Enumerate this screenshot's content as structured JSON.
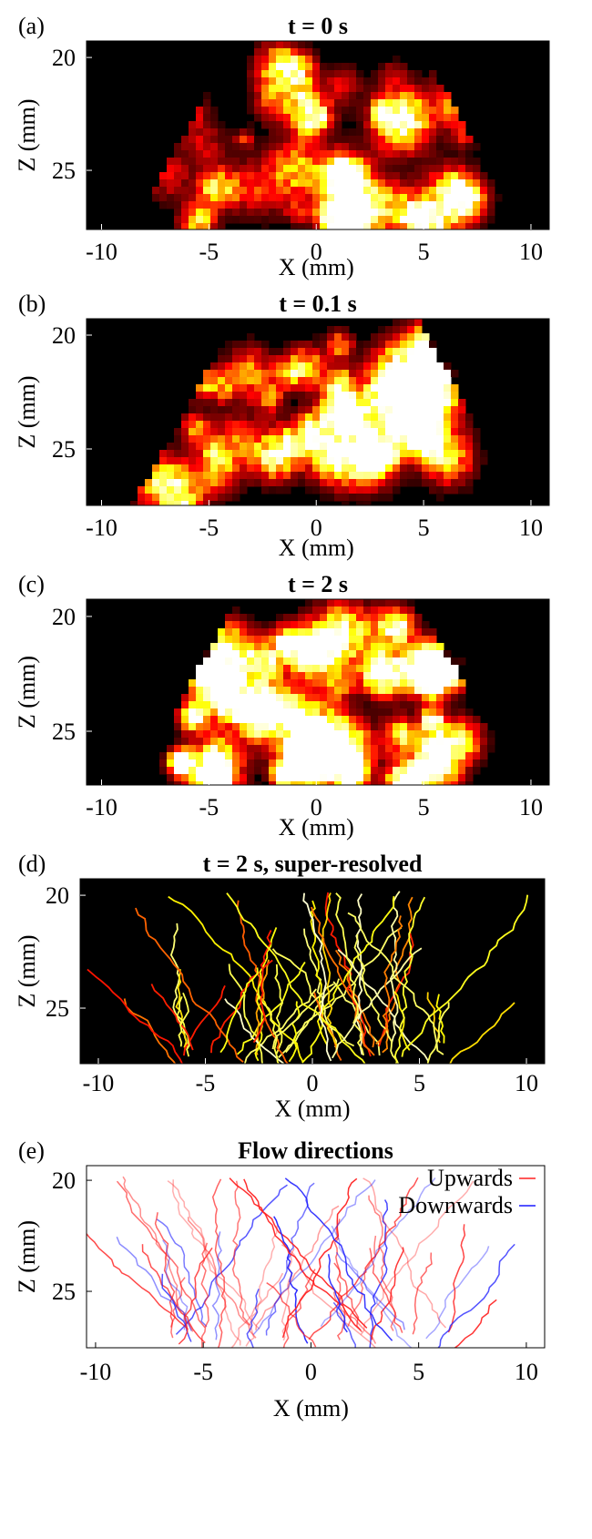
{
  "chart_data": [
    {
      "type": "heatmap",
      "panel_label": "(a)",
      "title": "t = 0 s",
      "xlabel": "X (mm)",
      "ylabel": "Z (mm)",
      "xlim": [
        -10.7,
        10.85
      ],
      "ylim": [
        19.27,
        27.62
      ],
      "y_reversed": true,
      "xticks": [
        -10,
        -5,
        0,
        5,
        10
      ],
      "yticks": [
        20,
        25
      ],
      "colormap": "hot"
    },
    {
      "type": "heatmap",
      "panel_label": "(b)",
      "title": "t = 0.1 s",
      "xlabel": "X (mm)",
      "ylabel": "Z (mm)",
      "xlim": [
        -10.7,
        10.85
      ],
      "ylim": [
        19.28,
        27.48
      ],
      "y_reversed": true,
      "xticks": [
        -10,
        -5,
        0,
        5,
        10
      ],
      "yticks": [
        20,
        25
      ],
      "colormap": "hot"
    },
    {
      "type": "heatmap",
      "panel_label": "(c)",
      "title": "t = 2 s",
      "xlabel": "X (mm)",
      "ylabel": "Z (mm)",
      "xlim": [
        -10.7,
        10.85
      ],
      "ylim": [
        19.25,
        27.34
      ],
      "y_reversed": true,
      "xticks": [
        -10,
        -5,
        0,
        5,
        10
      ],
      "yticks": [
        20,
        25
      ],
      "colormap": "hot"
    },
    {
      "type": "vessels",
      "panel_label": "(d)",
      "title": "t = 2 s, super-resolved",
      "xlabel": "X (mm)",
      "ylabel": "Z (mm)",
      "xlim": [
        -10.85,
        10.85
      ],
      "ylim": [
        19.27,
        27.46
      ],
      "y_reversed": true,
      "xticks": [
        -10,
        -5,
        0,
        5,
        10
      ],
      "yticks": [
        20,
        25
      ],
      "colormap": "hot"
    },
    {
      "type": "flow",
      "panel_label": "(e)",
      "title": "Flow directions",
      "xlabel": "X (mm)",
      "ylabel": "Z (mm)",
      "xlim": [
        -10.42,
        10.85
      ],
      "ylim": [
        19.34,
        27.54
      ],
      "y_reversed": true,
      "xticks": [
        -10,
        -5,
        0,
        5,
        10
      ],
      "yticks": [
        20,
        25
      ],
      "legend_position": "upper right",
      "legend": [
        {
          "label": "Upwards",
          "color": "#ff2020"
        },
        {
          "label": "Downwards",
          "color": "#1a1aff"
        }
      ]
    }
  ]
}
